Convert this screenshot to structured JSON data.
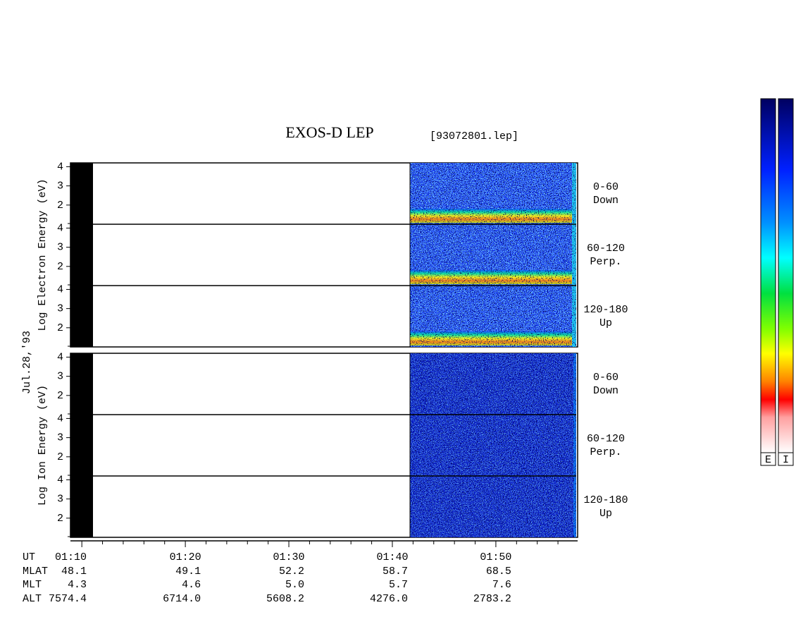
{
  "chart_data": {
    "type": "spectrogram",
    "title": "EXOS-D LEP",
    "subtitle": "[93072801.lep]",
    "date_label": "Jul.28,'93",
    "panels": [
      {
        "ylabel": "Log Electron Energy (eV)",
        "subpanels": [
          {
            "label": "0-60",
            "sublabel": "Down"
          },
          {
            "label": "60-120",
            "sublabel": "Perp."
          },
          {
            "label": "120-180",
            "sublabel": "Up"
          }
        ]
      },
      {
        "ylabel": "Log Ion Energy (eV)",
        "subpanels": [
          {
            "label": "0-60",
            "sublabel": "Down"
          },
          {
            "label": "60-120",
            "sublabel": "Perp."
          },
          {
            "label": "120-180",
            "sublabel": "Up"
          }
        ]
      }
    ],
    "ylim": [
      1,
      4.2
    ],
    "yticks": [
      2,
      3,
      4
    ],
    "xlim": [
      68.9,
      117.9
    ],
    "xticks": [
      {
        "value": 70,
        "label": "01:10"
      },
      {
        "value": 80,
        "label": "01:20"
      },
      {
        "value": 90,
        "label": "01:30"
      },
      {
        "value": 100,
        "label": "01:40"
      },
      {
        "value": 110,
        "label": "01:50"
      }
    ],
    "xminorticks": [
      72,
      74,
      76,
      78,
      82,
      84,
      86,
      88,
      92,
      94,
      96,
      98,
      102,
      104,
      106,
      108,
      112,
      114,
      116
    ],
    "ephemeris": {
      "row_labels": [
        "UT",
        "MLAT",
        "MLT",
        "ALT"
      ],
      "rows": [
        [
          "48.1",
          "49.1",
          "52.2",
          "58.7",
          "68.5"
        ],
        [
          "4.3",
          "4.6",
          "5.0",
          "5.7",
          "7.6"
        ],
        [
          "7574.4",
          "6714.0",
          "5608.2",
          "4276.0",
          "2783.2"
        ]
      ]
    },
    "colorbar_labels": [
      "E",
      "I"
    ]
  }
}
